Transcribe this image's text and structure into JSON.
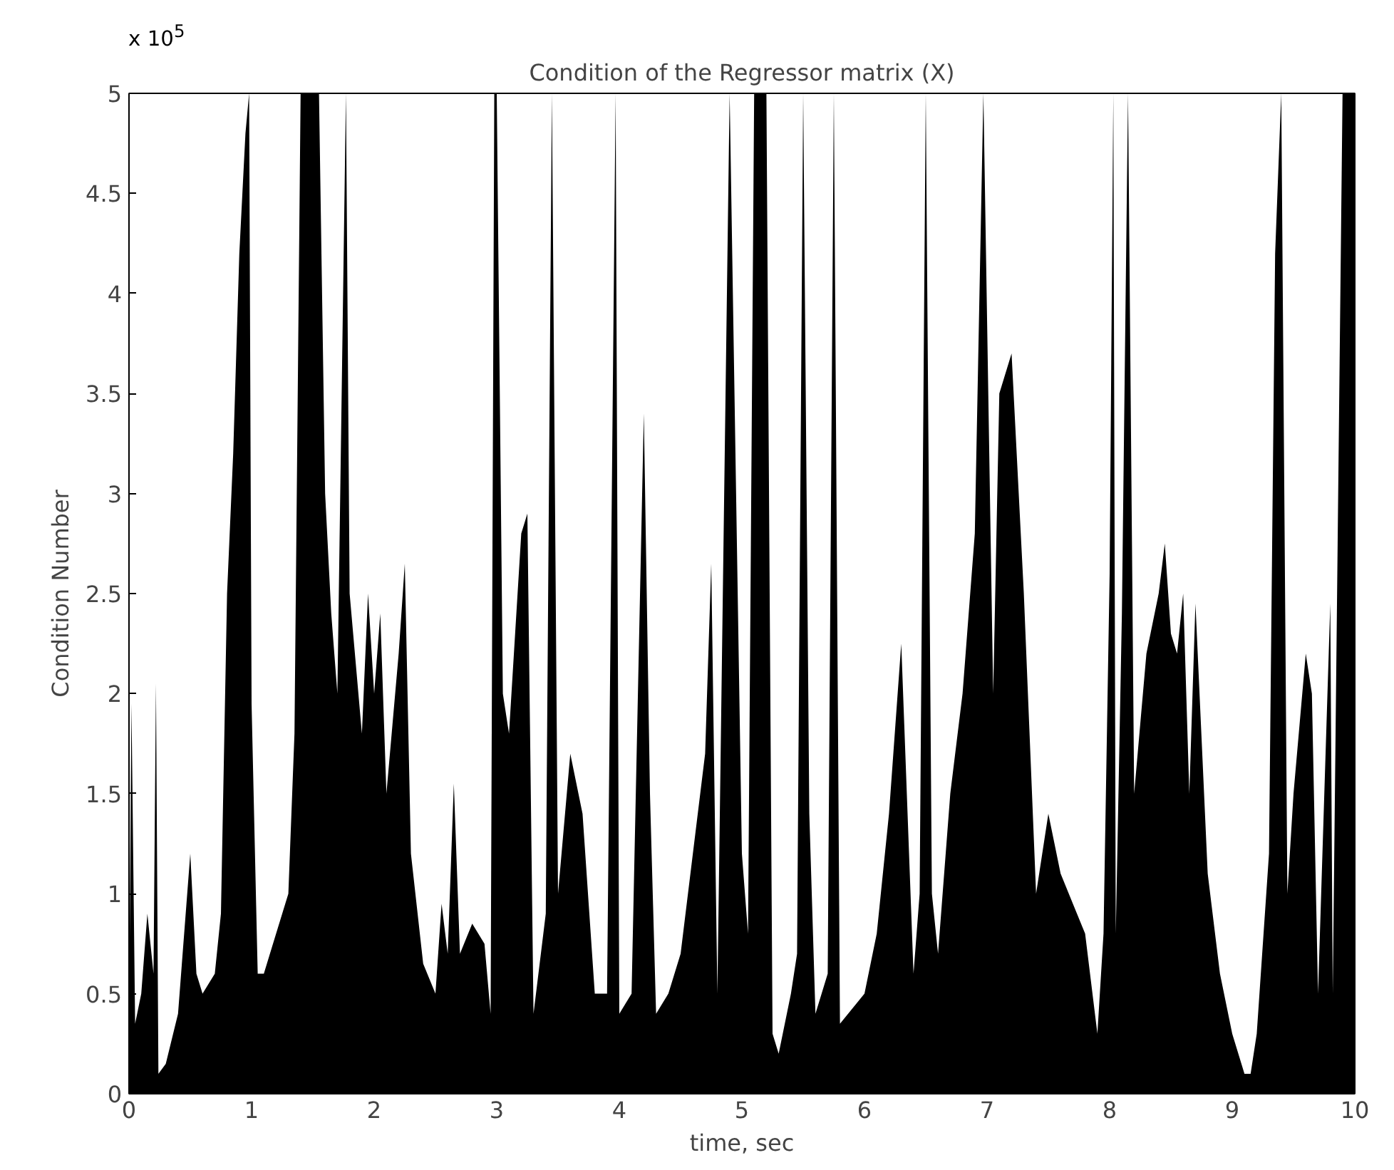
{
  "chart_data": {
    "type": "area",
    "title": "Condition of the Regressor matrix (X)",
    "xlabel": "time, sec",
    "ylabel": "Condition Number",
    "annotations": [
      "x 10$^{5}$"
    ],
    "x": [
      0,
      0.02,
      0.05,
      0.1,
      0.15,
      0.2,
      0.22,
      0.24,
      0.3,
      0.4,
      0.5,
      0.55,
      0.6,
      0.7,
      0.75,
      0.8,
      0.85,
      0.9,
      0.95,
      0.98,
      1.0,
      1.05,
      1.1,
      1.2,
      1.3,
      1.35,
      1.4,
      1.5,
      1.55,
      1.6,
      1.65,
      1.7,
      1.77,
      1.8,
      1.9,
      1.95,
      2.0,
      2.05,
      2.1,
      2.2,
      2.25,
      2.3,
      2.4,
      2.5,
      2.55,
      2.6,
      2.65,
      2.7,
      2.8,
      2.9,
      2.95,
      2.98,
      3.0,
      3.05,
      3.1,
      3.15,
      3.2,
      3.25,
      3.3,
      3.4,
      3.45,
      3.5,
      3.6,
      3.7,
      3.8,
      3.9,
      3.97,
      4.0,
      4.1,
      4.2,
      4.25,
      4.3,
      4.4,
      4.5,
      4.6,
      4.7,
      4.75,
      4.8,
      4.9,
      5.0,
      5.05,
      5.1,
      5.2,
      5.25,
      5.3,
      5.4,
      5.45,
      5.5,
      5.55,
      5.6,
      5.7,
      5.75,
      5.8,
      6.0,
      6.1,
      6.2,
      6.3,
      6.4,
      6.45,
      6.5,
      6.55,
      6.6,
      6.7,
      6.8,
      6.9,
      6.97,
      7.05,
      7.1,
      7.2,
      7.3,
      7.4,
      7.5,
      7.6,
      7.8,
      7.9,
      7.95,
      8.0,
      8.03,
      8.05,
      8.1,
      8.15,
      8.2,
      8.3,
      8.4,
      8.45,
      8.5,
      8.55,
      8.6,
      8.65,
      8.7,
      8.8,
      8.9,
      9.0,
      9.1,
      9.15,
      9.2,
      9.3,
      9.35,
      9.4,
      9.45,
      9.5,
      9.6,
      9.65,
      9.7,
      9.8,
      9.82,
      9.9,
      10
    ],
    "series": [
      {
        "color": "#000000",
        "values": [
          0.3,
          1.95,
          0.35,
          0.5,
          0.9,
          0.6,
          2.05,
          0.1,
          0.15,
          0.4,
          1.2,
          0.6,
          0.5,
          0.6,
          0.9,
          2.5,
          3.2,
          4.2,
          4.8,
          5,
          1.95,
          0.6,
          0.6,
          0.8,
          1.0,
          1.8,
          5,
          5,
          5,
          3.0,
          2.4,
          2.0,
          5,
          2.5,
          1.8,
          2.5,
          2.0,
          2.4,
          1.5,
          2.2,
          2.65,
          1.2,
          0.65,
          0.5,
          0.95,
          0.7,
          1.55,
          0.7,
          0.85,
          0.75,
          0.4,
          5,
          5,
          2.0,
          1.8,
          2.3,
          2.8,
          2.9,
          0.4,
          0.9,
          5,
          1.0,
          1.7,
          1.4,
          0.5,
          0.5,
          5,
          0.4,
          0.5,
          3.4,
          1.5,
          0.4,
          0.5,
          0.7,
          1.2,
          1.7,
          2.65,
          0.5,
          5,
          1.2,
          0.8,
          5,
          5,
          0.3,
          0.2,
          0.5,
          0.7,
          5,
          1.4,
          0.4,
          0.6,
          5,
          0.35,
          0.5,
          0.8,
          1.4,
          2.25,
          0.6,
          1.0,
          5,
          1.0,
          0.7,
          1.5,
          2.0,
          2.8,
          5,
          2.0,
          3.5,
          3.7,
          2.5,
          1.0,
          1.4,
          1.1,
          0.8,
          0.3,
          0.8,
          2.6,
          5,
          0.8,
          2.4,
          5,
          1.5,
          2.2,
          2.5,
          2.75,
          2.3,
          2.2,
          2.5,
          1.5,
          2.45,
          1.1,
          0.6,
          0.3,
          0.1,
          0.1,
          0.3,
          1.2,
          4.2,
          5,
          1.0,
          1.5,
          2.2,
          2.0,
          0.5,
          2.45,
          0.5,
          5,
          5
        ]
      }
    ],
    "xlim": [
      0,
      10
    ],
    "ylim": [
      0,
      5
    ],
    "xticks": [
      0,
      1,
      2,
      3,
      4,
      5,
      6,
      7,
      8,
      9,
      10
    ],
    "yticks": [
      0,
      0.5,
      1,
      1.5,
      2,
      2.5,
      3,
      3.5,
      4,
      4.5,
      5
    ],
    "grid": false
  }
}
